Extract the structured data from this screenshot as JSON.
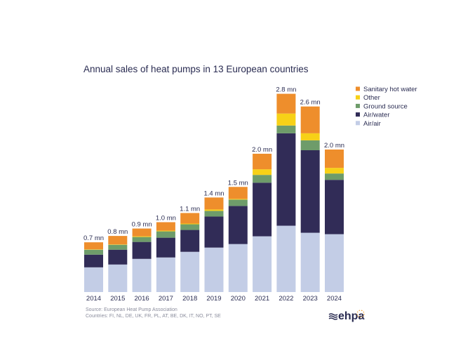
{
  "chart_data": {
    "type": "bar",
    "stacked": true,
    "title": "Annual sales of heat pumps in 13 European countries",
    "xlabel": "",
    "ylabel": "",
    "units": "million units",
    "ylim": [
      0,
      3.0
    ],
    "grid": false,
    "legend_position": "top-right",
    "categories": [
      "2014",
      "2015",
      "2016",
      "2017",
      "2018",
      "2019",
      "2020",
      "2021",
      "2022",
      "2023",
      "2024"
    ],
    "series": [
      {
        "name": "Air/air",
        "color": "#c3cde6",
        "values": [
          0.35,
          0.39,
          0.47,
          0.49,
          0.57,
          0.63,
          0.68,
          0.79,
          0.94,
          0.84,
          0.82
        ]
      },
      {
        "name": "Air/water",
        "color": "#312c57",
        "values": [
          0.18,
          0.21,
          0.24,
          0.28,
          0.31,
          0.44,
          0.54,
          0.76,
          1.31,
          1.17,
          0.77
        ]
      },
      {
        "name": "Ground source",
        "color": "#6e9c6a",
        "values": [
          0.07,
          0.07,
          0.07,
          0.09,
          0.08,
          0.08,
          0.09,
          0.11,
          0.11,
          0.14,
          0.09
        ]
      },
      {
        "name": "Other",
        "color": "#f7d117",
        "values": [
          0.005,
          0.005,
          0.01,
          0.01,
          0.01,
          0.02,
          0.01,
          0.08,
          0.17,
          0.1,
          0.08
        ]
      },
      {
        "name": "Sanitary hot water",
        "color": "#ee8e2c",
        "values": [
          0.1,
          0.12,
          0.11,
          0.12,
          0.15,
          0.17,
          0.17,
          0.22,
          0.28,
          0.38,
          0.26
        ]
      }
    ],
    "data_labels": [
      "0.7 mn",
      "0.8 mn",
      "0.9 mn",
      "1.0 mn",
      "1.1 mn",
      "1.4 mn",
      "1.5 mn",
      "2.0 mn",
      "2.8 mn",
      "2.6 mn",
      "2.0 mn"
    ],
    "legend_order": [
      "Sanitary hot water",
      "Other",
      "Ground source",
      "Air/water",
      "Air/air"
    ],
    "annotations": [
      "Source: European Heat Pump Association",
      "Countries: FI, NL, DE, UK, FR, PL, AT, BE, DK, IT, NO, PT, SE"
    ]
  },
  "logo": {
    "text": "ehpa"
  }
}
